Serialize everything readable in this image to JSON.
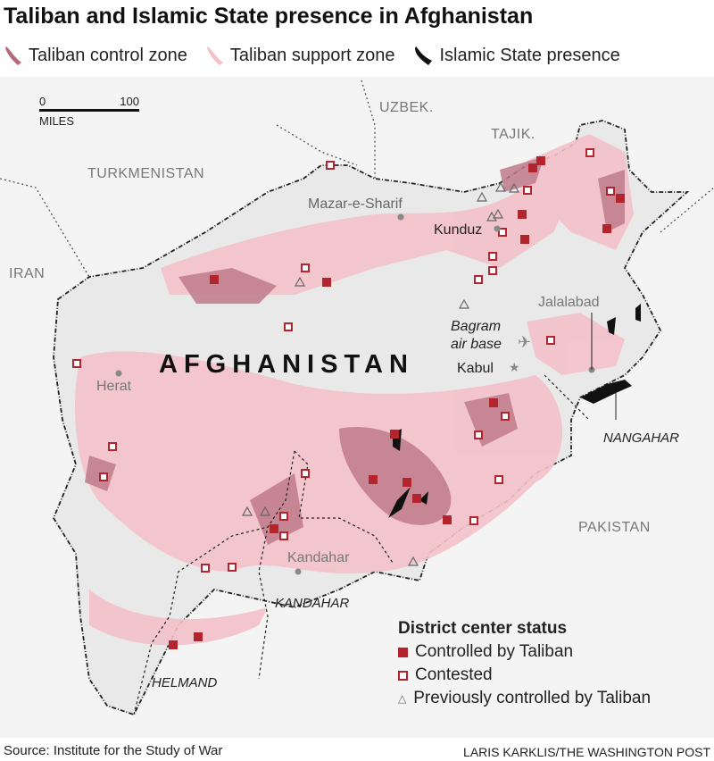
{
  "title": "Taliban and Islamic State presence in Afghanistan",
  "legend": {
    "control": {
      "label": "Taliban control zone",
      "color": "#b56a7c"
    },
    "support": {
      "label": "Taliban support zone",
      "color": "#f3c2c9"
    },
    "isis": {
      "label": "Islamic State presence",
      "color": "#111111"
    }
  },
  "scale": {
    "zero": "0",
    "max": "100",
    "unit": "MILES"
  },
  "countries": {
    "uzbek": "UZBEK.",
    "tajik": "TAJIK.",
    "turkmenistan": "TURKMENISTAN",
    "iran": "IRAN",
    "pakistan": "PAKISTAN",
    "afghanistan": "AFGHANISTAN"
  },
  "cities": {
    "mazar": "Mazar-e-Sharif",
    "kunduz": "Kunduz",
    "jalalabad": "Jalalabad",
    "bagram": "Bagram air base",
    "kabul": "Kabul",
    "herat": "Herat",
    "kandahar": "Kandahar"
  },
  "provinces": {
    "nangahar": "NANGAHAR",
    "kandahar": "KANDAHAR",
    "helmand": "HELMAND"
  },
  "district_legend": {
    "title": "District center status",
    "controlled": {
      "label": "Controlled by Taliban",
      "color": "#b3242c"
    },
    "contested": {
      "label": "Contested"
    },
    "previous": {
      "label": "Previously controlled by Taliban"
    }
  },
  "source": "Source: Institute for the Study of War",
  "credit": "LARIS KARKLIS/THE WASHINGTON POST"
}
